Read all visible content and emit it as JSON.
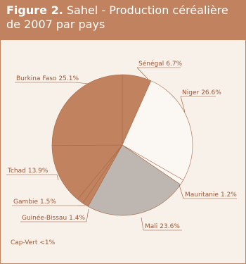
{
  "chart_data": {
    "type": "pie",
    "figure_label": "Figure 2.",
    "title": "Sahel - Production céréalière de 2007 par pays",
    "categories": [
      "Sénégal",
      "Niger",
      "Mauritanie",
      "Mali",
      "Guinée-Bissau",
      "Gambie",
      "Tchad",
      "Burkina Faso"
    ],
    "values": [
      6.7,
      26.6,
      1.2,
      23.6,
      1.4,
      1.5,
      13.9,
      25.1
    ],
    "value_labels": [
      "6.7%",
      "26.6%",
      "1.2%",
      "23.6%",
      "1.4%",
      "1.5%",
      "13.9%",
      "25.1%"
    ],
    "colors": [
      "#c0825f",
      "#fbf8f4",
      "#fbf8f4",
      "#bdb6b1",
      "#c0825f",
      "#c0825f",
      "#c0825f",
      "#c0825f"
    ],
    "annotation": "Cap-Vert <1%"
  }
}
